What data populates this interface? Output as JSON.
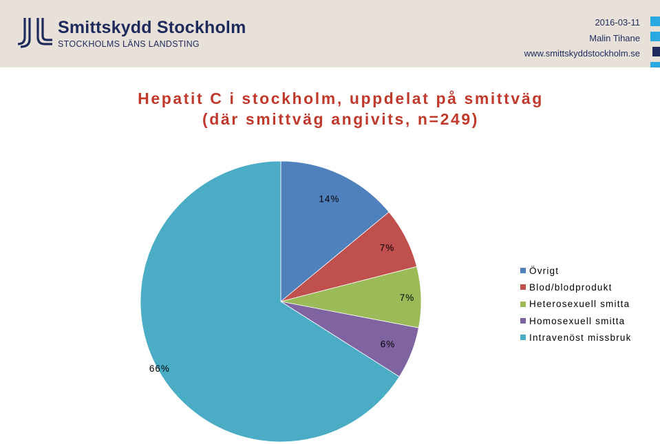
{
  "header": {
    "logo_name": "Smittskydd Stockholm",
    "logo_sub": "STOCKHOLMS LÄNS LANDSTING",
    "date": "2016-03-11",
    "author": "Malin Tihane",
    "url": "www.smittskyddstockholm.se"
  },
  "colors": {
    "header_bg": "#e8e1da",
    "brand_navy": "#1e2a5c",
    "title_red": "#c0392b",
    "accent_squares": [
      "#29a9e0",
      "#29a9e0",
      "#1e2a5c",
      "#29a9e0"
    ]
  },
  "chart_data": {
    "type": "pie",
    "title_lines": [
      "Hepatit C i stockholm, uppdelat på smittväg",
      "(där smittväg angivits, n=249)"
    ],
    "slices": [
      {
        "name": "Övrigt",
        "value": 14,
        "label": "14%",
        "color": "#4f81bd"
      },
      {
        "name": "Blod/blodprodukt",
        "value": 7,
        "label": "7%",
        "color": "#c0504d"
      },
      {
        "name": "Heterosexuell smitta",
        "value": 7,
        "label": "7%",
        "color": "#9bbb59"
      },
      {
        "name": "Homosexuell smitta",
        "value": 6,
        "label": "6%",
        "color": "#8064a2"
      },
      {
        "name": "Intravenöst missbruk",
        "value": 66,
        "label": "66%",
        "color": "#4bacc6"
      }
    ],
    "start": "12 o'clock",
    "direction": "clockwise",
    "legend_position": "right"
  }
}
